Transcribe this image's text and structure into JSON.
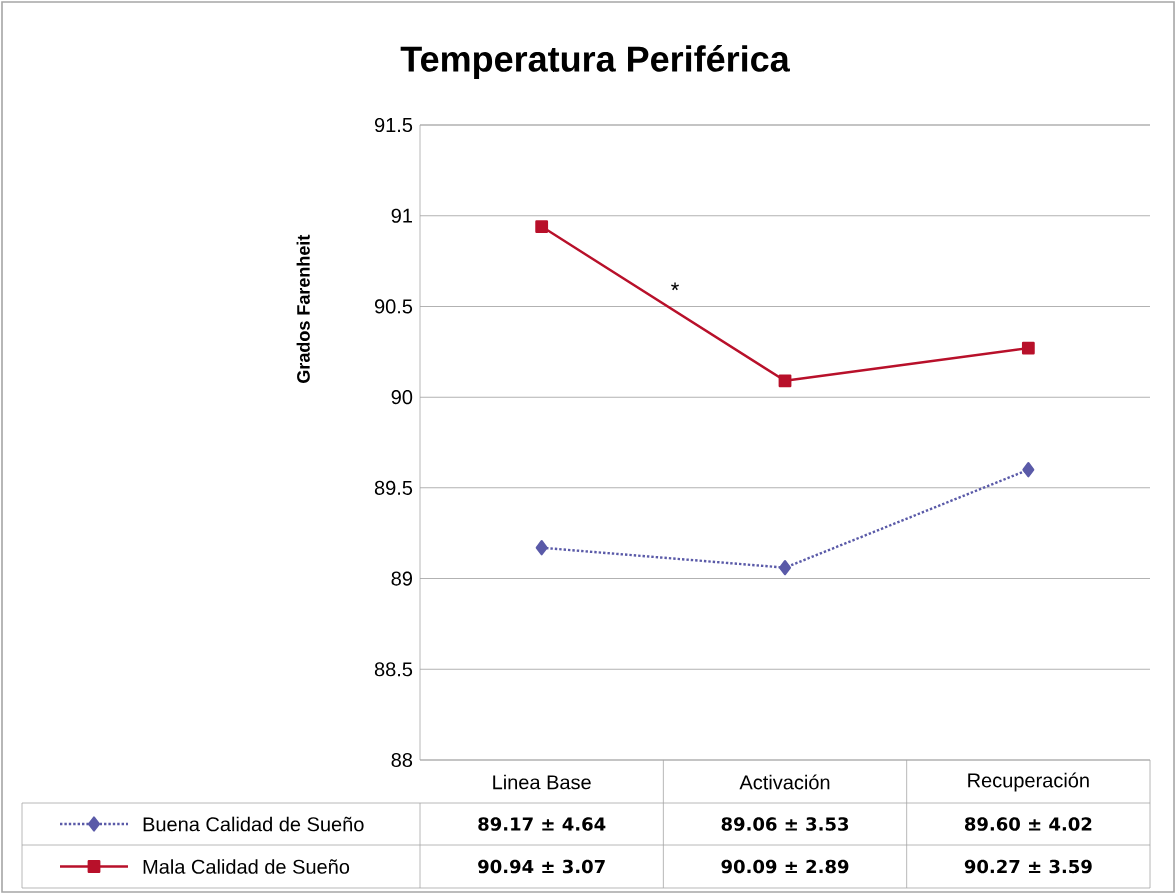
{
  "chart_data": {
    "type": "line",
    "title": "Temperatura Periférica",
    "ylabel": "Grados Farenheit",
    "categories": [
      "Linea Base",
      "Activación",
      "Recuperación"
    ],
    "series": [
      {
        "name": "Buena Calidad de Sueño",
        "color": "#5a5aa8",
        "values": [
          89.17,
          89.06,
          89.6
        ],
        "marker": "diamond",
        "line_style": "dotted",
        "value_labels": [
          "89.17 ± 4.64",
          "89.06 ± 3.53",
          "89.60 ± 4.02"
        ]
      },
      {
        "name": "Mala Calidad de Sueño",
        "color": "#b8102a",
        "values": [
          90.94,
          90.09,
          90.27
        ],
        "marker": "square",
        "line_style": "solid",
        "value_labels": [
          "90.94 ± 3.07",
          "90.09 ± 2.89",
          "90.27 ± 3.59"
        ]
      }
    ],
    "ylim": [
      88,
      91.5
    ],
    "yticks": [
      88,
      88.5,
      89,
      89.5,
      90,
      90.5,
      91,
      91.5
    ],
    "grid": "y",
    "legend": "bottom",
    "annotations": [
      "*"
    ]
  }
}
